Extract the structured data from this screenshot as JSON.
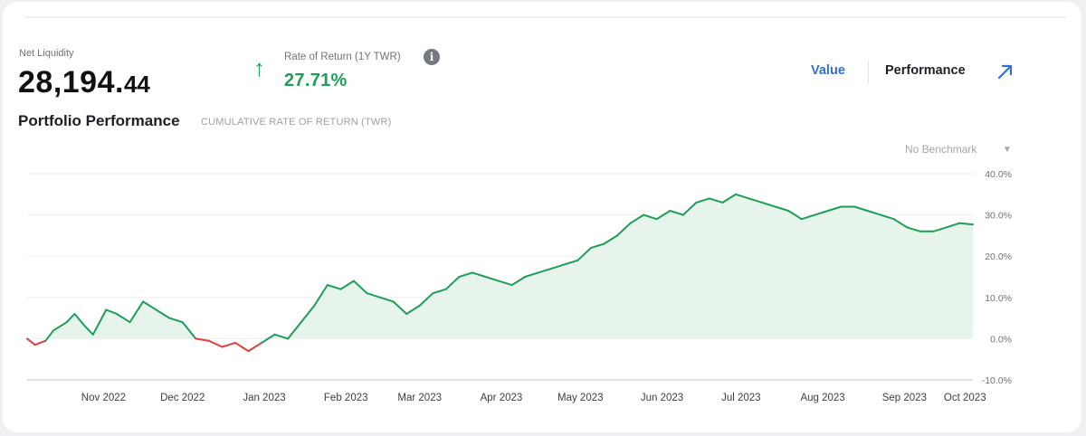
{
  "header": {
    "net_liquidity_label": "Net Liquidity",
    "net_liquidity_main": "28,194.",
    "net_liquidity_decimals": "44",
    "rate_label": "Rate of Return (1Y TWR)",
    "rate_value": "27.71%",
    "info_glyph": "i",
    "arrow_glyph": "↑"
  },
  "toggle": {
    "value_label": "Value",
    "performance_label": "Performance",
    "active": "Performance"
  },
  "title": {
    "main": "Portfolio Performance",
    "sub": "CUMULATIVE RATE OF RETURN (TWR)"
  },
  "benchmark": {
    "selected": "No Benchmark"
  },
  "icons": {
    "expand": "expand-arrow-icon",
    "info": "info-icon",
    "trend": "trend-up-arrow-icon",
    "dropdown": "chevron-down-icon"
  },
  "colors": {
    "positive": "#1e9e57",
    "negative": "#e0413e",
    "fill": "#e6f4ec",
    "link": "#2f6fd6"
  },
  "chart_data": {
    "type": "area",
    "xlabel": "",
    "ylabel": "",
    "ylim": [
      -10,
      40
    ],
    "yticks": [
      -10,
      0,
      10,
      20,
      30,
      40
    ],
    "ytick_labels": [
      "-10.0%",
      "0.0%",
      "10.0%",
      "20.0%",
      "30.0%",
      "40.0%"
    ],
    "xtick_labels": [
      "Nov 2022",
      "Dec 2022",
      "Jan 2023",
      "Feb 2023",
      "Mar 2023",
      "Apr 2023",
      "May 2023",
      "Jun 2023",
      "Jul 2023",
      "Aug 2023",
      "Sep 2023",
      "Oct 2023"
    ],
    "x": [
      "2022-10-17",
      "2022-10-20",
      "2022-10-24",
      "2022-10-27",
      "2022-11-01",
      "2022-11-04",
      "2022-11-08",
      "2022-11-11",
      "2022-11-16",
      "2022-11-20",
      "2022-11-25",
      "2022-11-30",
      "2022-12-05",
      "2022-12-10",
      "2022-12-15",
      "2022-12-20",
      "2022-12-25",
      "2022-12-30",
      "2023-01-04",
      "2023-01-09",
      "2023-01-14",
      "2023-01-19",
      "2023-01-24",
      "2023-01-29",
      "2023-02-03",
      "2023-02-08",
      "2023-02-13",
      "2023-02-18",
      "2023-02-23",
      "2023-02-28",
      "2023-03-05",
      "2023-03-10",
      "2023-03-15",
      "2023-03-20",
      "2023-03-25",
      "2023-03-30",
      "2023-04-04",
      "2023-04-09",
      "2023-04-14",
      "2023-04-19",
      "2023-04-24",
      "2023-04-29",
      "2023-05-04",
      "2023-05-09",
      "2023-05-14",
      "2023-05-19",
      "2023-05-24",
      "2023-05-29",
      "2023-06-03",
      "2023-06-08",
      "2023-06-13",
      "2023-06-18",
      "2023-06-23",
      "2023-06-28",
      "2023-07-03",
      "2023-07-08",
      "2023-07-13",
      "2023-07-18",
      "2023-07-23",
      "2023-07-28",
      "2023-08-02",
      "2023-08-07",
      "2023-08-12",
      "2023-08-17",
      "2023-08-22",
      "2023-08-27",
      "2023-09-01",
      "2023-09-06",
      "2023-09-11",
      "2023-09-16",
      "2023-09-21",
      "2023-09-26",
      "2023-10-01",
      "2023-10-06",
      "2023-10-11"
    ],
    "series": [
      {
        "values": [
          0,
          -1.5,
          -0.5,
          2,
          4,
          6,
          3,
          1,
          7,
          6,
          4,
          9,
          7,
          5,
          4,
          0,
          -0.5,
          -2,
          -1,
          -3,
          -1,
          1,
          0,
          4,
          8,
          13,
          12,
          14,
          11,
          10,
          9,
          6,
          8,
          11,
          12,
          15,
          16,
          15,
          14,
          13,
          15,
          16,
          17,
          18,
          19,
          22,
          23,
          25,
          28,
          30,
          29,
          31,
          30,
          33,
          34,
          33,
          35,
          34,
          33,
          32,
          31,
          29,
          30,
          31,
          32,
          32,
          31,
          30,
          29,
          27,
          26,
          26,
          27,
          28,
          27.7
        ]
      }
    ]
  }
}
